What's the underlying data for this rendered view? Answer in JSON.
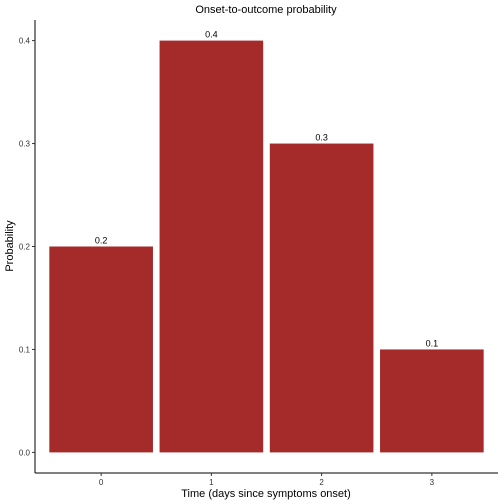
{
  "chart_data": {
    "type": "bar",
    "title": "Onset-to-outcome probability",
    "xlabel": "Time (days since symptoms onset)",
    "ylabel": "Probability",
    "categories": [
      "0",
      "1",
      "2",
      "3"
    ],
    "values": [
      0.2,
      0.4,
      0.3,
      0.1
    ],
    "data_labels": [
      "0.2",
      "0.4",
      "0.3",
      "0.1"
    ],
    "yticks": [
      0.0,
      0.1,
      0.2,
      0.3,
      0.4
    ],
    "ytick_labels": [
      "0.0",
      "0.1",
      "0.2",
      "0.3",
      "0.4"
    ],
    "ylim": [
      -0.02,
      0.42
    ],
    "grid": false,
    "legend": "none",
    "bar_color": "#A52A2A"
  }
}
